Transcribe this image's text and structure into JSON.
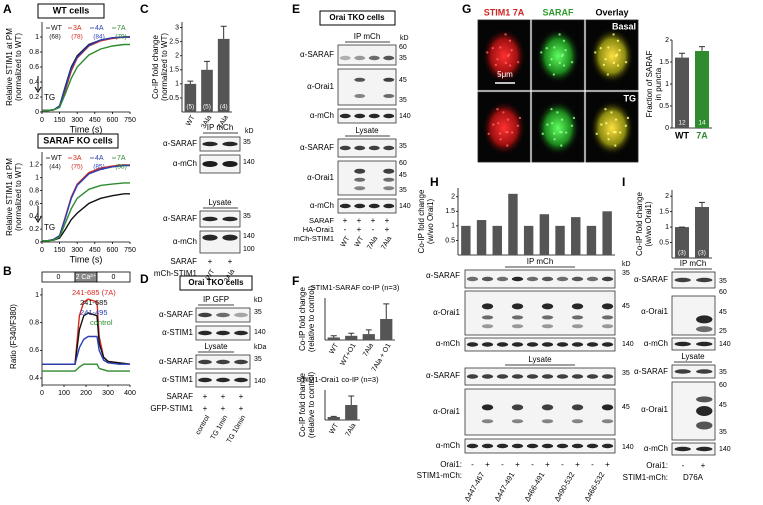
{
  "chart_data": [
    {
      "type": "line",
      "title": "WT cells",
      "ylabel": [
        "Relative STIM1 at PM",
        "(normalized to WT)"
      ],
      "xlabel": "Time (s)",
      "annotation": "TG",
      "xlim": [
        0,
        750
      ],
      "xticks": [
        0,
        150,
        300,
        450,
        600,
        750
      ],
      "ylim": [
        0,
        1.2
      ],
      "yticks": [
        0,
        0.2,
        0.4,
        0.6,
        0.8,
        1
      ],
      "x": [
        0,
        50,
        100,
        150,
        200,
        250,
        300,
        400,
        500,
        600,
        700,
        750
      ],
      "series": [
        {
          "name": "WT",
          "n_label": "(68)",
          "color": "#111111",
          "values": [
            0.02,
            0.02,
            0.03,
            0.08,
            0.35,
            0.6,
            0.75,
            0.9,
            0.96,
            0.99,
            1,
            1
          ]
        },
        {
          "name": "3A",
          "n_label": "(78)",
          "color": "#d42a1e",
          "values": [
            0.02,
            0.02,
            0.03,
            0.07,
            0.3,
            0.55,
            0.72,
            0.88,
            0.95,
            0.98,
            1,
            1
          ]
        },
        {
          "name": "4A",
          "n_label": "(84)",
          "color": "#2b3fb5",
          "values": [
            0.02,
            0.02,
            0.03,
            0.08,
            0.33,
            0.58,
            0.73,
            0.89,
            0.96,
            0.99,
            1,
            1
          ]
        },
        {
          "name": "7A",
          "n_label": "(79)",
          "color": "#2e8b2e",
          "values": [
            0.02,
            0.02,
            0.03,
            0.06,
            0.25,
            0.45,
            0.6,
            0.76,
            0.84,
            0.88,
            0.9,
            0.9
          ]
        }
      ]
    },
    {
      "type": "line",
      "title": "SARAF KO cells",
      "ylabel": [
        "Relative STIM1 at PM",
        "(normalized to WT)"
      ],
      "xlabel": "Time (s)",
      "annotation": "TG",
      "xlim": [
        0,
        750
      ],
      "xticks": [
        0,
        150,
        300,
        450,
        600,
        750
      ],
      "ylim": [
        0,
        1.4
      ],
      "yticks": [
        0,
        0.2,
        0.4,
        0.6,
        0.8,
        1,
        1.2
      ],
      "x": [
        0,
        50,
        100,
        150,
        200,
        250,
        300,
        400,
        500,
        600,
        700,
        750
      ],
      "series": [
        {
          "name": "WT",
          "n_label": "(44)",
          "color": "#111111",
          "values": [
            0.02,
            0.02,
            0.03,
            0.06,
            0.2,
            0.35,
            0.45,
            0.6,
            0.68,
            0.72,
            0.75,
            0.75
          ]
        },
        {
          "name": "3A",
          "n_label": "(75)",
          "color": "#d42a1e",
          "values": [
            0.02,
            0.02,
            0.04,
            0.1,
            0.4,
            0.7,
            0.9,
            1.08,
            1.15,
            1.18,
            1.2,
            1.2
          ]
        },
        {
          "name": "4A",
          "n_label": "(85)",
          "color": "#2b3fb5",
          "values": [
            0.02,
            0.02,
            0.04,
            0.1,
            0.38,
            0.68,
            0.88,
            1.06,
            1.13,
            1.17,
            1.19,
            1.19
          ]
        },
        {
          "name": "7A",
          "n_label": "(58)",
          "color": "#2e8b2e",
          "values": [
            0.02,
            0.02,
            0.03,
            0.08,
            0.3,
            0.52,
            0.68,
            0.82,
            0.88,
            0.9,
            0.92,
            0.92
          ]
        }
      ]
    },
    {
      "type": "line",
      "ylabel": [
        "Ratio (F340/F380)"
      ],
      "bath": [
        "0",
        "2 Ca²⁺",
        "0"
      ],
      "xlim": [
        0,
        400
      ],
      "xticks": [
        0,
        100,
        200,
        300,
        400
      ],
      "ylim": [
        0.35,
        1.05
      ],
      "yticks": [
        0.4,
        0.6,
        0.8,
        1
      ],
      "x": [
        0,
        50,
        100,
        150,
        170,
        190,
        210,
        250,
        260,
        280,
        300,
        350,
        400
      ],
      "series": [
        {
          "name": "241-685 (7A)",
          "color": "#d42a1e",
          "values": [
            0.5,
            0.5,
            0.5,
            0.5,
            0.85,
            0.95,
            0.97,
            0.95,
            0.7,
            0.55,
            0.52,
            0.51,
            0.5
          ]
        },
        {
          "name": "241-685",
          "color": "#111111",
          "values": [
            0.5,
            0.5,
            0.5,
            0.5,
            0.75,
            0.85,
            0.87,
            0.85,
            0.65,
            0.55,
            0.52,
            0.51,
            0.5
          ]
        },
        {
          "name": "241-495",
          "color": "#2b3fb5",
          "values": [
            0.5,
            0.5,
            0.5,
            0.5,
            0.62,
            0.68,
            0.7,
            0.7,
            0.6,
            0.53,
            0.51,
            0.5,
            0.5
          ]
        },
        {
          "name": "control",
          "color": "#2e8b2e",
          "values": [
            0.45,
            0.45,
            0.45,
            0.45,
            0.48,
            0.5,
            0.5,
            0.5,
            0.47,
            0.46,
            0.45,
            0.45,
            0.45
          ]
        }
      ]
    },
    {
      "type": "bar",
      "ylabel": [
        "Co-IP fold change",
        "(normalized to WT)"
      ],
      "categories": [
        "WT",
        "3Ala",
        "7Ala"
      ],
      "values": [
        1,
        1.5,
        2.6
      ],
      "errors": [
        0.1,
        0.3,
        0.45
      ],
      "n_labels": [
        "(5)",
        "(5)",
        "(4)"
      ],
      "color": "#555555",
      "ylim": [
        0,
        3.2
      ],
      "yticks": [
        0.5,
        1,
        1.5,
        2,
        2.5,
        3
      ]
    },
    {
      "type": "bar",
      "title": "STIM1-SARAF co-IP (n=3)",
      "ylabel": [
        "Co-IP fold change",
        "(relative to control)"
      ],
      "categories": [
        "WT",
        "WT+O1",
        "7Ala",
        "7Ala + O1"
      ],
      "values": [
        0.3,
        0.5,
        0.7,
        2.5
      ],
      "errors": [
        0.2,
        0.3,
        0.5,
        1.8
      ],
      "color": "#555555",
      "ylim": [
        0,
        5
      ]
    },
    {
      "type": "bar",
      "title": "STIM1-Orai1 co-IP (n=3)",
      "ylabel": [
        "Co-IP fold change",
        "(relative to control)"
      ],
      "categories": [
        "WT",
        "7Ala"
      ],
      "values": [
        0.5,
        2.5
      ],
      "errors": [
        0.1,
        1.5
      ],
      "color": "#555555",
      "ylim": [
        0,
        5
      ]
    },
    {
      "type": "bar",
      "ylabel": [
        "Fraction of SARAF",
        "in puncta"
      ],
      "categories": [
        "WT",
        "7A"
      ],
      "values": [
        1.6,
        1.75
      ],
      "errors": [
        0.1,
        0.1
      ],
      "n_labels": [
        "12",
        "14"
      ],
      "colors": [
        "#555555",
        "#2e8b2e"
      ],
      "ylim": [
        0,
        2
      ],
      "yticks": [
        0,
        0.5,
        1,
        1.5,
        2
      ]
    },
    {
      "type": "bar",
      "ylabel": [
        "Co-IP fold change",
        "(w/wo Orai1)"
      ],
      "values": [
        1,
        1.2,
        1,
        2.1,
        1,
        1.4,
        1,
        1.3,
        1,
        1.5
      ],
      "color": "#555555",
      "ylim": [
        0,
        2.3
      ],
      "yticks": [
        0.5,
        1,
        1.5,
        2
      ]
    },
    {
      "type": "bar",
      "ylabel": [
        "Co-IP fold change",
        "(w/wo Orai1)"
      ],
      "values": [
        1,
        1.65
      ],
      "errors": [
        0,
        0.15
      ],
      "n_labels": [
        "(3)",
        "(3)"
      ],
      "color": "#555555",
      "ylim": [
        0,
        2.2
      ],
      "yticks": [
        0.5,
        1,
        1.5,
        2
      ]
    }
  ],
  "labels": {
    "letters": [
      "A",
      "B",
      "C",
      "D",
      "E",
      "F",
      "G",
      "H",
      "I"
    ],
    "c": {
      "ip": "IP mCh",
      "kd": "kD",
      "rows": [
        "α-SARAF",
        "α-mCh"
      ],
      "mw": [
        "35",
        "140"
      ],
      "lysate": "Lysate",
      "lys_rows": [
        "α-SARAF",
        "α-mCh"
      ],
      "lys_mw": [
        "35",
        "140",
        "100"
      ],
      "conditions": [
        "SARAF",
        "mCh-STIM1"
      ],
      "signs": [
        "+",
        "+"
      ],
      "lanes": [
        "WT",
        "3Ala"
      ]
    },
    "d": {
      "box": "Orai TKO cells",
      "ip": "IP GFP",
      "kd": "kD",
      "rows": [
        "α-SARAF",
        "α-STIM1"
      ],
      "mw": [
        "35",
        "140"
      ],
      "lysate": "Lysate",
      "kda": "kDa",
      "lys_rows": [
        "α-SARAF",
        "α-STIM1"
      ],
      "lys_mw": [
        "35",
        "140"
      ],
      "conditions": [
        "SARAF",
        "GFP-STIM1"
      ],
      "signs": [
        [
          "+",
          "+",
          "+"
        ],
        [
          "+",
          "+",
          "+"
        ]
      ],
      "lanes": [
        "control",
        "TG 1min",
        "TG 10min"
      ]
    },
    "e": {
      "box": "Orai TKO cells",
      "ip": "IP mCh",
      "kd": "kD",
      "rows": [
        "α-SARAF",
        "α-Orai1",
        "α-mCh"
      ],
      "mw": [
        "35",
        "60",
        "45",
        "35",
        "140"
      ],
      "lysate": "Lysate",
      "lys_rows": [
        "α-SARAF",
        "α-Orai1",
        "α-mCh"
      ],
      "lys_mw": [
        "35",
        "60",
        "45",
        "35",
        "140"
      ],
      "conditions": [
        "SARAF",
        "HA-Orai1",
        "mCh-STIM1"
      ],
      "signs": [
        [
          "+",
          "+",
          "+",
          "+"
        ],
        [
          "-",
          "+",
          "-",
          "+"
        ]
      ],
      "lanes": [
        "WT",
        "WT",
        "7Ala",
        "7Ala"
      ]
    },
    "g": {
      "columns": [
        "STIM1 7A",
        "SARAF",
        "Overlay"
      ],
      "rows": [
        "Basal",
        "TG"
      ],
      "scale": "5μm"
    },
    "h": {
      "ip": "IP mCh",
      "kd": "kD",
      "rows": [
        "α-SARAF",
        "α-Orai1",
        "α-mCh"
      ],
      "mw": [
        "35",
        "45",
        "140"
      ],
      "lysate": "Lysate",
      "lys_rows": [
        "α-SARAF",
        "α-Orai1",
        "α-mCh"
      ],
      "lys_mw": [
        "35",
        "45",
        "140"
      ],
      "conditions": [
        "Orai1:",
        "STIM1-mCh:"
      ],
      "signs": [
        "-",
        "+",
        "-",
        "+",
        "-",
        "+",
        "-",
        "+",
        "-",
        "+"
      ],
      "lanes": [
        "Δ447-467",
        "Δ447-491",
        "Δ466-491",
        "Δ490-532",
        "Δ466-532"
      ]
    },
    "i": {
      "ip": "IP mCh",
      "rows": [
        "α-SARAF",
        "α-Orai1",
        "α-mCh"
      ],
      "mw": [
        "35",
        "60",
        "45",
        "25",
        "140"
      ],
      "lysate": "Lysate",
      "lys_rows": [
        "α-SARAF",
        "α-Orai1",
        "α-mCh"
      ],
      "lys_mw": [
        "35",
        "60",
        "45",
        "35",
        "140"
      ],
      "conditions": [
        "Orai1:",
        "STIM1-mCh:"
      ],
      "signs": [
        "-",
        "+"
      ],
      "lanes": [
        "D76A"
      ]
    }
  }
}
